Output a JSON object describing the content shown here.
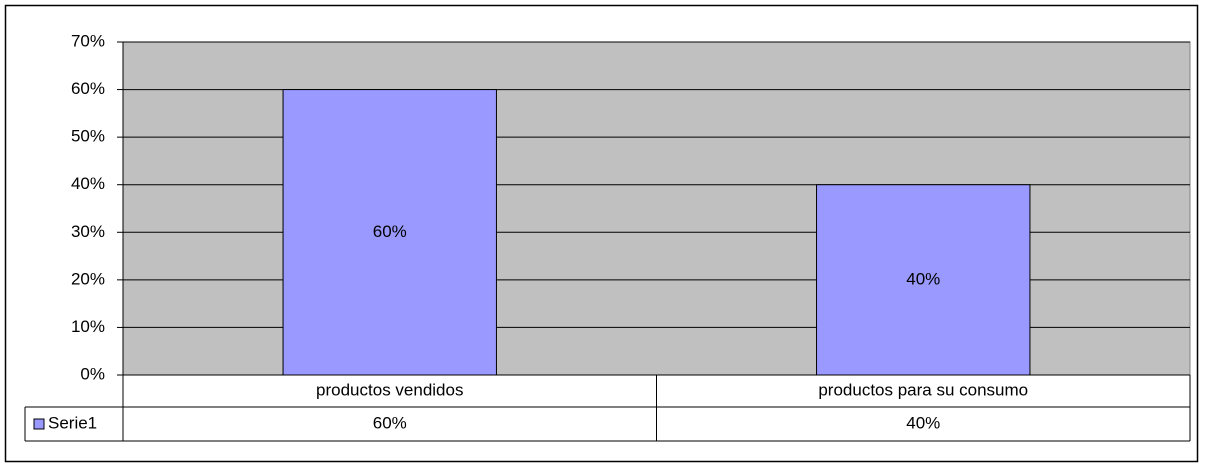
{
  "chart_data": {
    "type": "bar",
    "categories": [
      "productos vendidos",
      "productos para su consumo"
    ],
    "series": [
      {
        "name": "Serie1",
        "color": "#9999ff",
        "values": [
          60,
          40
        ],
        "value_labels": [
          "60%",
          "40%"
        ]
      }
    ],
    "ylim": [
      0,
      70
    ],
    "yticks": [
      {
        "value": 0,
        "label": "0%"
      },
      {
        "value": 10,
        "label": "10%"
      },
      {
        "value": 20,
        "label": "20%"
      },
      {
        "value": 30,
        "label": "30%"
      },
      {
        "value": 40,
        "label": "40%"
      },
      {
        "value": 50,
        "label": "50%"
      },
      {
        "value": 60,
        "label": "60%"
      },
      {
        "value": 70,
        "label": "70%"
      }
    ],
    "grid": true,
    "plot_background": "#c0c0c0"
  }
}
